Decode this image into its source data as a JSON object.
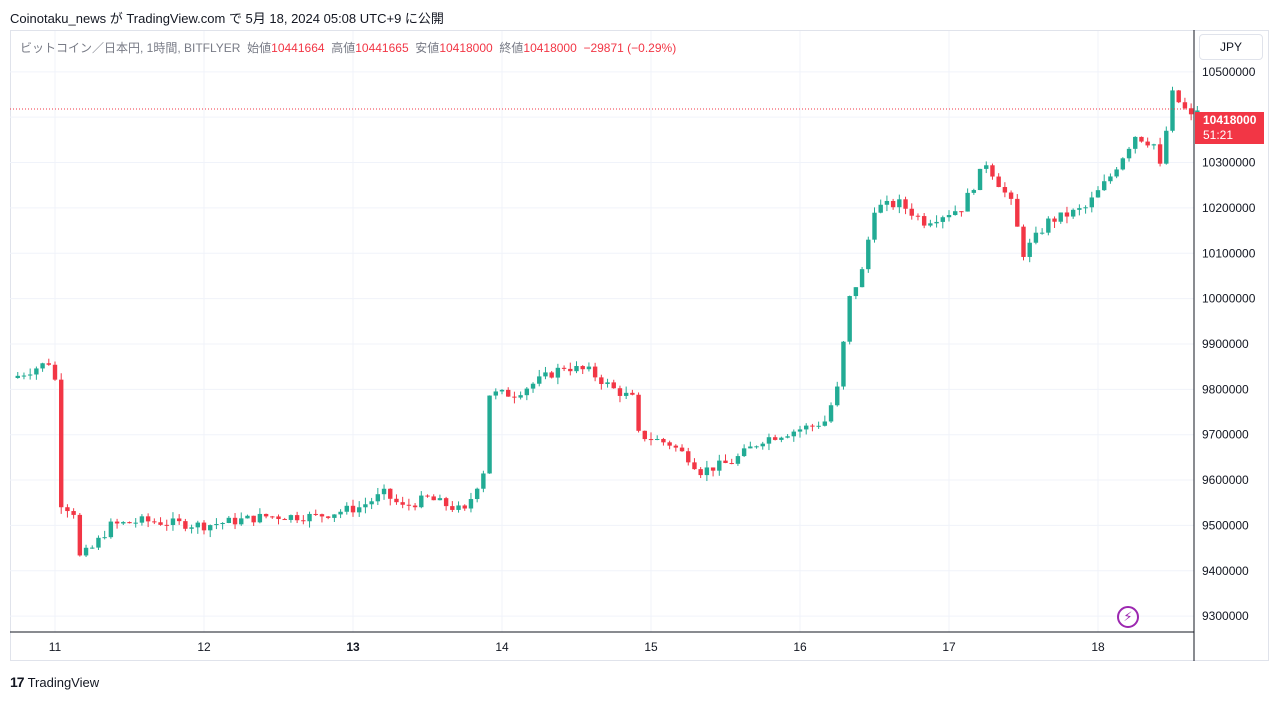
{
  "header": {
    "title": "Coinotaku_news が TradingView.com で 5月 18, 2024 05:08 UTC+9 に公開"
  },
  "legend": {
    "symbol": "ビットコイン／日本円, 1時間, BITFLYER",
    "open_label": "始値",
    "open": "10441664",
    "high_label": "高値",
    "high": "10441665",
    "low_label": "安値",
    "low": "10418000",
    "close_label": "終値",
    "close": "10418000",
    "change": "−29871 (−0.29%)"
  },
  "currency_button": "JPY",
  "price_badge": {
    "price": "10418000",
    "countdown": "51:21"
  },
  "footer": {
    "logo": "17",
    "brand": "TradingView"
  },
  "colors": {
    "up": "#22ab94",
    "down": "#f23645",
    "grid": "#f0f3fa",
    "alert_icon": "#9c27b0"
  },
  "icons": {
    "alert": "lightning-icon"
  },
  "chart_data": {
    "type": "candlestick",
    "title": "ビットコイン／日本円, 1時間, BITFLYER",
    "x_ticks": [
      "11",
      "12",
      "13",
      "14",
      "15",
      "16",
      "17",
      "18"
    ],
    "bold_x_ticks": [
      "13"
    ],
    "y_ticks": [
      9300000,
      9400000,
      9500000,
      9600000,
      9700000,
      9800000,
      9900000,
      10000000,
      10100000,
      10200000,
      10300000,
      10400000,
      10500000
    ],
    "y_tick_labels": [
      "9300000",
      "9400000",
      "9500000",
      "9600000",
      "9700000",
      "9800000",
      "9900000",
      "10000000",
      "10100000",
      "10200000",
      "10300000",
      "",
      "10500000"
    ],
    "ylim": [
      9265000,
      10590000
    ],
    "last_price": 10418000,
    "grid": true,
    "key_points": [
      [
        0,
        9830000
      ],
      [
        5,
        9860000
      ],
      [
        6,
        9820000
      ],
      [
        7,
        9550000
      ],
      [
        9,
        9530000
      ],
      [
        10,
        9430000
      ],
      [
        12,
        9450000
      ],
      [
        15,
        9500000
      ],
      [
        20,
        9510000
      ],
      [
        30,
        9500000
      ],
      [
        40,
        9520000
      ],
      [
        48,
        9520000
      ],
      [
        55,
        9540000
      ],
      [
        59,
        9570000
      ],
      [
        62,
        9540000
      ],
      [
        66,
        9560000
      ],
      [
        72,
        9530000
      ],
      [
        75,
        9620000
      ],
      [
        76,
        9790000
      ],
      [
        80,
        9790000
      ],
      [
        84,
        9820000
      ],
      [
        88,
        9850000
      ],
      [
        92,
        9840000
      ],
      [
        96,
        9800000
      ],
      [
        99,
        9780000
      ],
      [
        100,
        9700000
      ],
      [
        105,
        9680000
      ],
      [
        108,
        9650000
      ],
      [
        110,
        9620000
      ],
      [
        115,
        9640000
      ],
      [
        120,
        9690000
      ],
      [
        128,
        9720000
      ],
      [
        130,
        9730000
      ],
      [
        132,
        9800000
      ],
      [
        134,
        10000000
      ],
      [
        136,
        10060000
      ],
      [
        138,
        10200000
      ],
      [
        142,
        10210000
      ],
      [
        146,
        10170000
      ],
      [
        152,
        10200000
      ],
      [
        156,
        10300000
      ],
      [
        160,
        10210000
      ],
      [
        162,
        10100000
      ],
      [
        166,
        10170000
      ],
      [
        172,
        10200000
      ],
      [
        176,
        10270000
      ],
      [
        180,
        10360000
      ],
      [
        183,
        10340000
      ],
      [
        184,
        10290000
      ],
      [
        186,
        10450000
      ],
      [
        189,
        10400000
      ],
      [
        190,
        10418000
      ]
    ]
  }
}
